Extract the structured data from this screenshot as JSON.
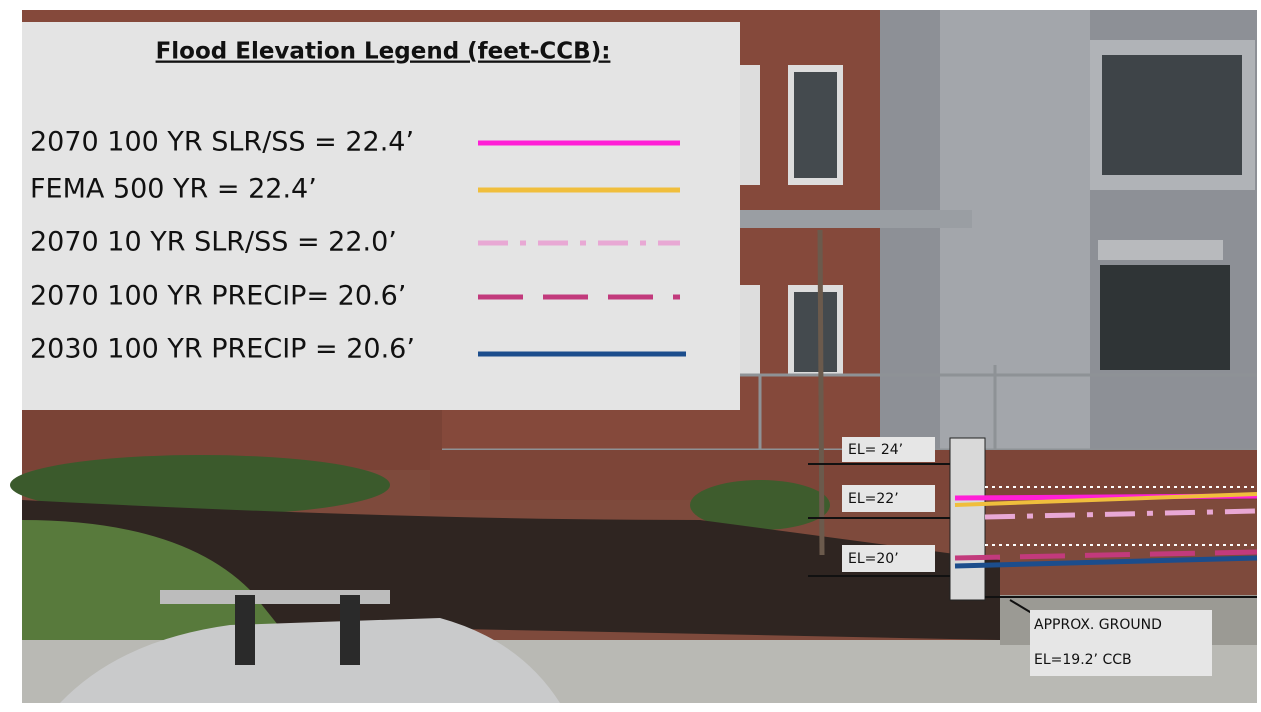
{
  "legend": {
    "title": "Flood Elevation Legend (feet-CCB):",
    "items": [
      "2070 100 YR SLR/SS = 22.4’",
      "FEMA 500 YR = 22.4’",
      "2070 10 YR SLR/SS =  22.0’",
      "2070 100 YR PRECIP= 20.6’",
      "2030 100 YR PRECIP = 20.6’"
    ]
  },
  "gauge": {
    "labels": [
      "EL= 24’",
      "EL=22’",
      "EL=20’"
    ]
  },
  "ground": {
    "lines": [
      "APPROX. GROUND",
      "EL=19.2’ CCB"
    ]
  }
}
